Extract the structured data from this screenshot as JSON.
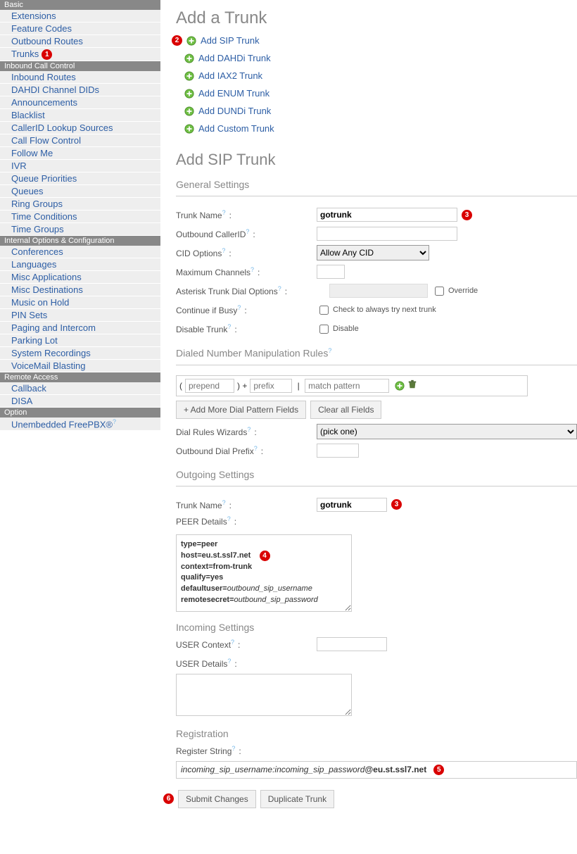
{
  "sidebar": {
    "sections": [
      {
        "header": "Basic",
        "items": [
          {
            "label": "Extensions"
          },
          {
            "label": "Feature Codes"
          },
          {
            "label": "Outbound Routes"
          },
          {
            "label": "Trunks",
            "badge": "1"
          }
        ]
      },
      {
        "header": "Inbound Call Control",
        "items": [
          {
            "label": "Inbound Routes"
          },
          {
            "label": "DAHDI Channel DIDs"
          },
          {
            "label": "Announcements"
          },
          {
            "label": "Blacklist"
          },
          {
            "label": "CallerID Lookup Sources"
          },
          {
            "label": "Call Flow Control"
          },
          {
            "label": "Follow Me"
          },
          {
            "label": "IVR"
          },
          {
            "label": "Queue Priorities"
          },
          {
            "label": "Queues"
          },
          {
            "label": "Ring Groups"
          },
          {
            "label": "Time Conditions"
          },
          {
            "label": "Time Groups"
          }
        ]
      },
      {
        "header": "Internal Options & Configuration",
        "items": [
          {
            "label": "Conferences"
          },
          {
            "label": "Languages"
          },
          {
            "label": "Misc Applications"
          },
          {
            "label": "Misc Destinations"
          },
          {
            "label": "Music on Hold"
          },
          {
            "label": "PIN Sets"
          },
          {
            "label": "Paging and Intercom"
          },
          {
            "label": "Parking Lot"
          },
          {
            "label": "System Recordings"
          },
          {
            "label": "VoiceMail Blasting"
          }
        ]
      },
      {
        "header": "Remote Access",
        "items": [
          {
            "label": "Callback"
          },
          {
            "label": "DISA"
          }
        ]
      },
      {
        "header": "Option",
        "items": [
          {
            "label": "Unembedded FreePBX®",
            "help": true
          }
        ]
      }
    ]
  },
  "page": {
    "title": "Add a Trunk",
    "badge_before_links": "2",
    "trunk_types": [
      {
        "label": "Add SIP Trunk"
      },
      {
        "label": "Add DAHDi Trunk"
      },
      {
        "label": "Add IAX2 Trunk"
      },
      {
        "label": "Add ENUM Trunk"
      },
      {
        "label": "Add DUNDi Trunk"
      },
      {
        "label": "Add Custom Trunk"
      }
    ],
    "sip_title": "Add SIP Trunk",
    "general": {
      "heading": "General Settings",
      "trunk_name_label": "Trunk Name",
      "trunk_name_value": "gotrunk",
      "trunk_name_badge": "3",
      "outbound_cid_label": "Outbound CallerID",
      "outbound_cid_value": "",
      "cid_options_label": "CID Options",
      "cid_options_selected": "Allow Any CID",
      "max_channels_label": "Maximum Channels",
      "max_channels_value": "",
      "dial_options_label": "Asterisk Trunk Dial Options",
      "dial_options_value": "",
      "dial_options_override": "Override",
      "continue_busy_label": "Continue if Busy",
      "continue_busy_text": "Check to always try next trunk",
      "disable_label": "Disable Trunk",
      "disable_text": "Disable"
    },
    "dnmr": {
      "heading": "Dialed Number Manipulation Rules",
      "prepend_placeholder": "prepend",
      "prefix_placeholder": "prefix",
      "match_placeholder": "match pattern",
      "add_more": "+ Add More Dial Pattern Fields",
      "clear_all": "Clear all Fields",
      "wizards_label": "Dial Rules Wizards",
      "wizards_selected": "(pick one)",
      "prefix_out_label": "Outbound Dial Prefix",
      "prefix_out_value": ""
    },
    "outgoing": {
      "heading": "Outgoing Settings",
      "trunk_name_label": "Trunk Name",
      "trunk_name_value": "gotrunk",
      "trunk_name_badge": "3",
      "peer_label": "PEER Details",
      "peer_badge": "4",
      "peer_lines": {
        "l1": "type=peer",
        "l2": "host=eu.st.ssl7.net",
        "l3": "context=from-trunk",
        "l4": "qualify=yes",
        "l5a": "defaultuser=",
        "l5b": "outbound_sip_username",
        "l6a": "remotesecret=",
        "l6b": "outbound_sip_password"
      }
    },
    "incoming": {
      "heading": "Incoming Settings",
      "user_context_label": "USER Context",
      "user_context_value": "",
      "user_details_label": "USER Details",
      "user_details_value": ""
    },
    "registration": {
      "heading": "Registration",
      "label": "Register String",
      "value_italic": "incoming_sip_username:incoming_sip_password",
      "value_bold": "@eu.st.ssl7.net",
      "badge": "5"
    },
    "buttons": {
      "badge": "6",
      "submit": "Submit Changes",
      "duplicate": "Duplicate Trunk"
    }
  }
}
